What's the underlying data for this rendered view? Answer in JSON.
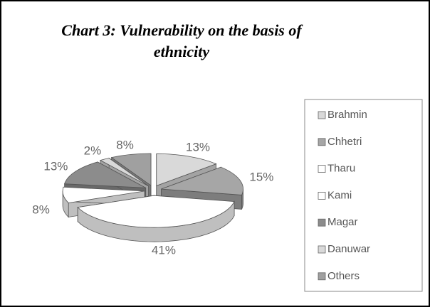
{
  "chart_data": {
    "type": "pie",
    "title": "Chart 3: Vulnerability on the basis of ethnicity",
    "categories": [
      "Brahmin",
      "Chhetri",
      "Tharu",
      "Kami",
      "Magar",
      "Danuwar",
      "Others"
    ],
    "values": [
      13,
      15,
      41,
      8,
      13,
      2,
      8
    ],
    "value_labels": [
      "13%",
      "15%",
      "41%",
      "8%",
      "13%",
      "2%",
      "8%"
    ],
    "colors": [
      "#d9d9d9",
      "#a6a6a6",
      "#ffffff",
      "#ffffff",
      "#8c8c8c",
      "#d9d9d9",
      "#a0a0a0"
    ],
    "legend": "right"
  }
}
